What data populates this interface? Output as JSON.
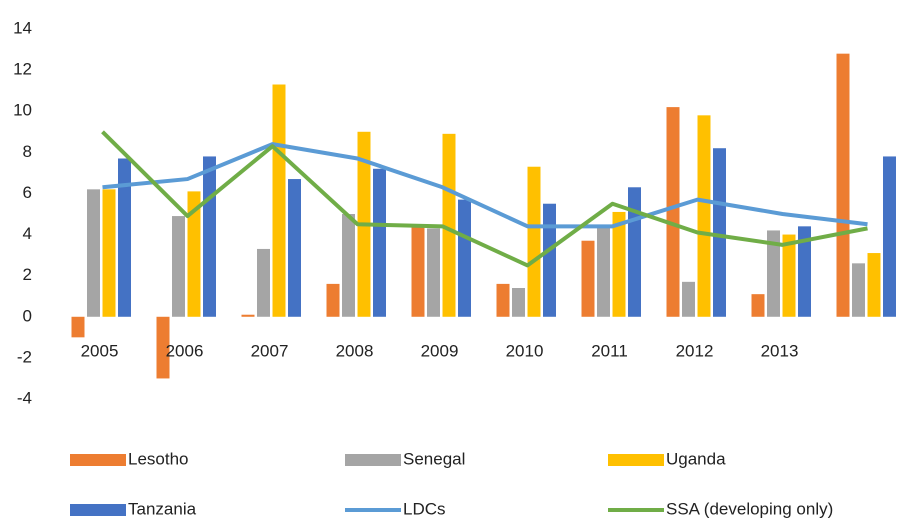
{
  "chart_data": {
    "type": "bar",
    "categories": [
      "2005",
      "2006",
      "2007",
      "2008",
      "2009",
      "2010",
      "2011",
      "2012",
      "2013",
      null
    ],
    "series": [
      {
        "name": "Lesotho",
        "color": "#ed7d31",
        "values": [
          -1.0,
          -3.0,
          0.1,
          1.6,
          4.4,
          1.6,
          3.7,
          10.2,
          1.1,
          12.8
        ]
      },
      {
        "name": "Senegal",
        "color": "#a5a5a5",
        "values": [
          6.2,
          4.9,
          3.3,
          5.0,
          4.3,
          1.4,
          4.4,
          1.7,
          4.2,
          2.6
        ]
      },
      {
        "name": "Uganda",
        "color": "#ffc000",
        "values": [
          6.2,
          6.1,
          11.3,
          9.0,
          8.9,
          7.3,
          5.1,
          9.8,
          4.0,
          3.1
        ]
      },
      {
        "name": "Tanzania",
        "color": "#4472c4",
        "values": [
          7.7,
          7.8,
          6.7,
          7.2,
          5.7,
          5.5,
          6.3,
          8.2,
          4.4,
          7.8
        ]
      },
      {
        "name": "LDCs",
        "color": "#5b9bd5",
        "type": "line",
        "values": [
          6.3,
          6.7,
          8.4,
          7.7,
          6.3,
          4.4,
          4.4,
          5.7,
          5.0,
          4.5
        ]
      },
      {
        "name": "SSA (developing only)",
        "color": "#70ad47",
        "type": "line",
        "values": [
          9.0,
          4.9,
          8.3,
          4.5,
          4.4,
          2.5,
          5.5,
          4.1,
          3.5,
          4.3
        ]
      }
    ],
    "ylim": [
      -4,
      14
    ],
    "yticks": [
      -4,
      -2,
      0,
      2,
      4,
      6,
      8,
      10,
      12,
      14
    ],
    "grid": false
  }
}
